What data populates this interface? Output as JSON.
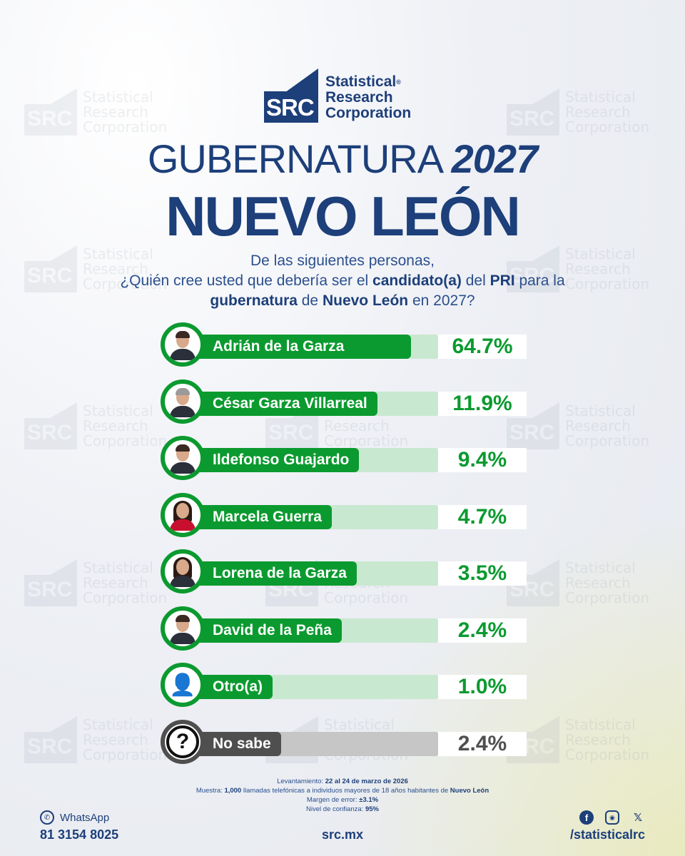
{
  "brand": {
    "logo_abbr": "SRC",
    "logo_line1": "Statistical",
    "logo_line2": "Research",
    "logo_line3": "Corporation",
    "registered": "®",
    "watermark_abbr": "SRC",
    "watermark_line1": "Statistical",
    "watermark_line2": "Research",
    "watermark_line3": "Corporation"
  },
  "header": {
    "title_word": "GUBERNATURA",
    "title_year": "2027",
    "subtitle": "NUEVO LEÓN"
  },
  "question": {
    "line1": "De las siguientes personas,",
    "line2_a": "¿Quién cree usted que debería ser el ",
    "line2_b": "candidato(a)",
    "line2_c": " del ",
    "line2_d": "PRI",
    "line2_e": " para la",
    "line3_a": "gubernatura",
    "line3_b": " de ",
    "line3_c": "Nuevo León",
    "line3_d": " en 2027?"
  },
  "chart_data": {
    "type": "bar",
    "orientation": "horizontal",
    "categories": [
      "Adrián de la Garza",
      "César Garza Villarreal",
      "Ildefonso Guajardo",
      "Marcela Guerra",
      "Lorena de la Garza",
      "David de la Peña",
      "Otro(a)",
      "No sabe"
    ],
    "values": [
      64.7,
      11.9,
      9.4,
      4.7,
      3.5,
      2.4,
      1.0,
      2.4
    ],
    "labels": [
      "64.7%",
      "11.9%",
      "9.4%",
      "4.7%",
      "3.5%",
      "2.4%",
      "1.0%",
      "2.4%"
    ],
    "unit": "%",
    "xlim": [
      0,
      100
    ],
    "avatar_types": [
      "man",
      "man",
      "man",
      "woman",
      "woman",
      "man",
      "person-icon",
      "question-icon"
    ],
    "colors": {
      "primary": "#0b9a2f",
      "fill": "#a6d9b2",
      "track": "#c9e8d0",
      "unknown": "#4f4f4f",
      "unknown_track": "#c6c6c6",
      "unknown_fill": "#a9a9a9"
    }
  },
  "footer": {
    "fieldwork_label": "Levantamiento: ",
    "fieldwork_value": "22 al 24 de marzo de 2026",
    "sample_label": "Muestra: ",
    "sample_value": "1,000",
    "sample_text": " llamadas telefónicas a individuos mayores de 18 años habitantes de ",
    "sample_place": "Nuevo León",
    "error_label": "Margen de error: ",
    "error_value": "±3.1%",
    "confidence_label": "Nivel de confianza: ",
    "confidence_value": "95%",
    "whatsapp_label": "WhatsApp",
    "whatsapp_number": "81 3154 8025",
    "website": "src.mx",
    "social_handle": "/statisticalrc"
  }
}
